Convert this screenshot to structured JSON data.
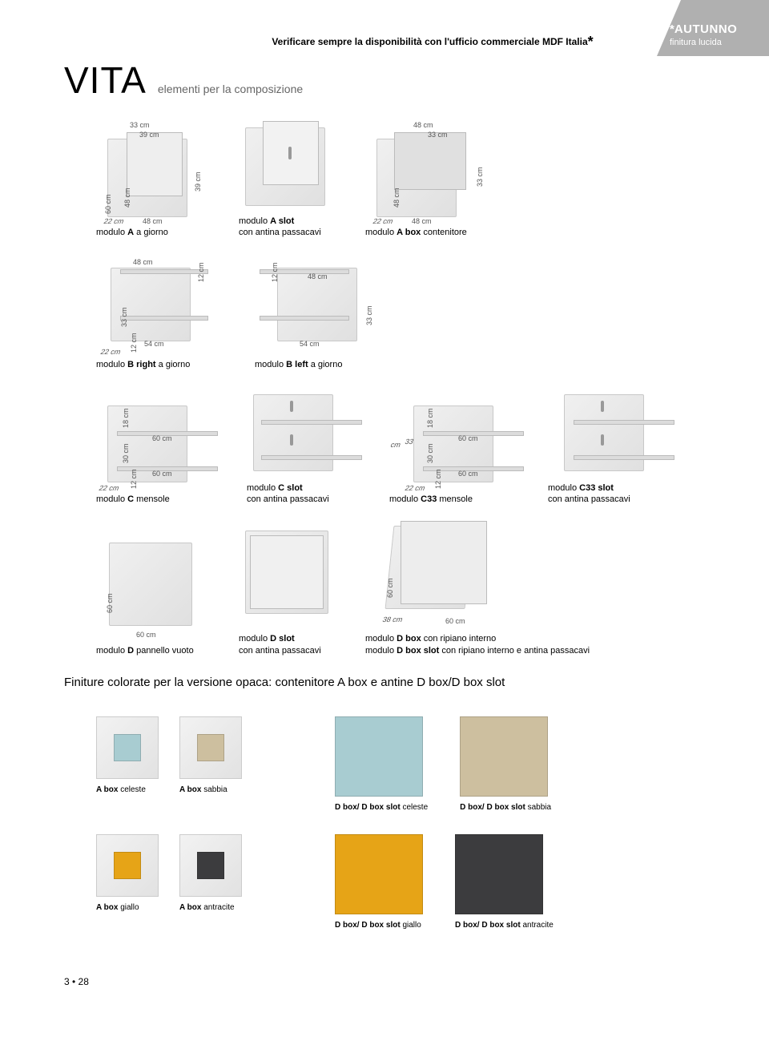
{
  "corner": {
    "star": "*",
    "name": "AUTUNNO",
    "sub": "finitura lucida"
  },
  "topNote": {
    "text": "Verificare sempre la disponibilità con l'ufficio commerciale MDF Italia",
    "star": "*"
  },
  "title": {
    "brand": "VITA",
    "subtitle": "elementi per la composizione"
  },
  "rowA": {
    "a": {
      "h60": "60 cm",
      "h48": "48 cm",
      "w33": "33 cm",
      "w39": "39 cm",
      "h39": "39 cm",
      "d22": "22 cm",
      "w48": "48 cm",
      "cap1": "modulo ",
      "bold": "A",
      "cap2": " a giorno"
    },
    "aslot": {
      "cap1": "modulo ",
      "bold": "A slot",
      "sub": "con antina passacavi"
    },
    "abox": {
      "w48t": "48 cm",
      "w33": "33 cm",
      "h48": "48 cm",
      "h33": "33 cm",
      "d22": "22 cm",
      "w48": "48 cm",
      "cap1": "modulo ",
      "bold": "A box",
      "cap2": " contenitore"
    }
  },
  "rowB": {
    "bright": {
      "w48": "48 cm",
      "h12": "12 cm",
      "h33": "33 cm",
      "w54": "54 cm",
      "d22": "22 cm",
      "h12b": "12 cm",
      "cap1": "modulo ",
      "bold": "B right",
      "cap2": "  a giorno"
    },
    "bleft": {
      "h12": "12 cm",
      "w48": "48 cm",
      "h33": "33 cm",
      "w54": "54 cm",
      "cap1": "modulo ",
      "bold": "B left",
      "cap2": " a giorno"
    }
  },
  "rowC": {
    "c": {
      "h18": "18 cm",
      "h30": "30 cm",
      "w60a": "60 cm",
      "w60b": "60 cm",
      "d22": "22 cm",
      "h12": "12 cm",
      "cap1": "modulo ",
      "bold": "C",
      "cap2": "  mensole"
    },
    "cslot": {
      "cap1": "modulo ",
      "bold": "C slot",
      "sub": "con antina passacavi"
    },
    "c33": {
      "h18": "18 cm",
      "h30": "30 cm",
      "w60a": "60 cm",
      "w60b": "60 cm",
      "d22": "22 cm",
      "h12": "12 cm",
      "s33": "33",
      "scm": "cm",
      "cap1": "modulo ",
      "bold": "C33",
      "cap2": " mensole"
    },
    "c33slot": {
      "cap1": "modulo ",
      "bold": "C33 slot",
      "sub": "con antina passacavi"
    }
  },
  "rowD": {
    "d": {
      "h60": "60 cm",
      "w60": "60 cm",
      "cap1": "modulo ",
      "bold": "D",
      "cap2": " pannello vuoto"
    },
    "dslot": {
      "cap1": "modulo ",
      "bold": "D slot",
      "sub": "con antina passacavi"
    },
    "dbox": {
      "h60": "60 cm",
      "d38": "38 cm",
      "w60": "60 cm",
      "cap1": "modulo ",
      "bold1": "D box",
      "cap2": " con ripiano interno",
      "cap3": "modulo ",
      "bold2": "D box slot",
      "cap4": " con ripiano interno e antina passacavi"
    }
  },
  "finiture": {
    "title": "Finiture colorate per la versione opaca: contenitore A box e antine D box/D box slot",
    "colors": {
      "celeste": "#a8ccd1",
      "sabbia": "#cdbf9f",
      "giallo": "#e6a417",
      "antracite": "#3c3c3e"
    },
    "small": {
      "r1": [
        {
          "key": "celeste",
          "label_b": "A box",
          "label": " celeste"
        },
        {
          "key": "sabbia",
          "label_b": "A box",
          "label": " sabbia"
        }
      ],
      "r2": [
        {
          "key": "giallo",
          "label_b": "A box",
          "label": " giallo"
        },
        {
          "key": "antracite",
          "label_b": "A box",
          "label": " antracite"
        }
      ]
    },
    "big": {
      "r1": [
        {
          "key": "celeste",
          "label_b": "D box/ D box slot",
          "label": " celeste"
        },
        {
          "key": "sabbia",
          "label_b": "D box/ D box slot",
          "label": " sabbia"
        }
      ],
      "r2": [
        {
          "key": "giallo",
          "label_b": "D box/ D box slot",
          "label": " giallo"
        },
        {
          "key": "antracite",
          "label_b": "D box/ D box slot",
          "label": " antracite"
        }
      ]
    }
  },
  "footer": {
    "page": "3 • 28"
  }
}
